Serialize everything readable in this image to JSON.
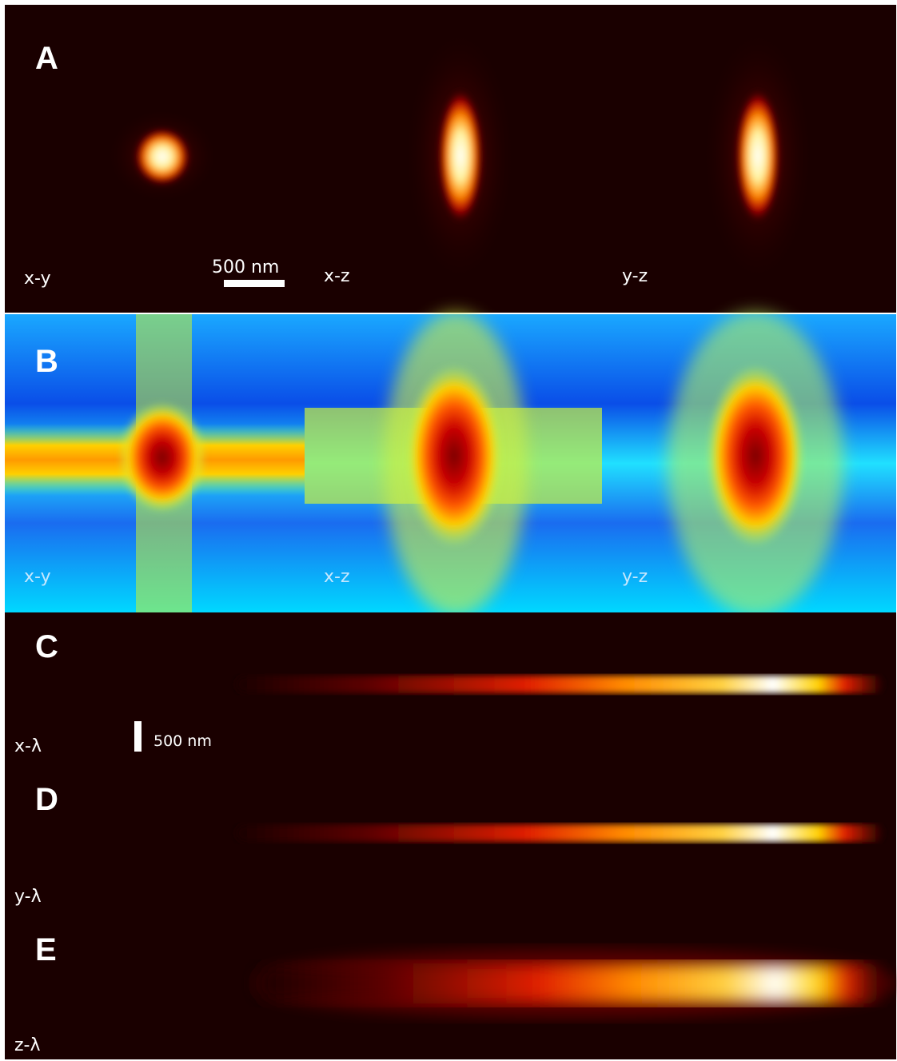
{
  "panels": [
    {
      "letter": "A",
      "views": [
        "x-y",
        "x-z",
        "y-z"
      ],
      "scale_bar": "500 nm"
    },
    {
      "letter": "B",
      "views": [
        "x-y",
        "x-z",
        "y-z"
      ]
    },
    {
      "letter": "C",
      "label": "x-λ",
      "scale_bar": "500 nm"
    },
    {
      "letter": "D",
      "label": "y-λ"
    },
    {
      "letter": "E",
      "label": "z-λ"
    }
  ]
}
